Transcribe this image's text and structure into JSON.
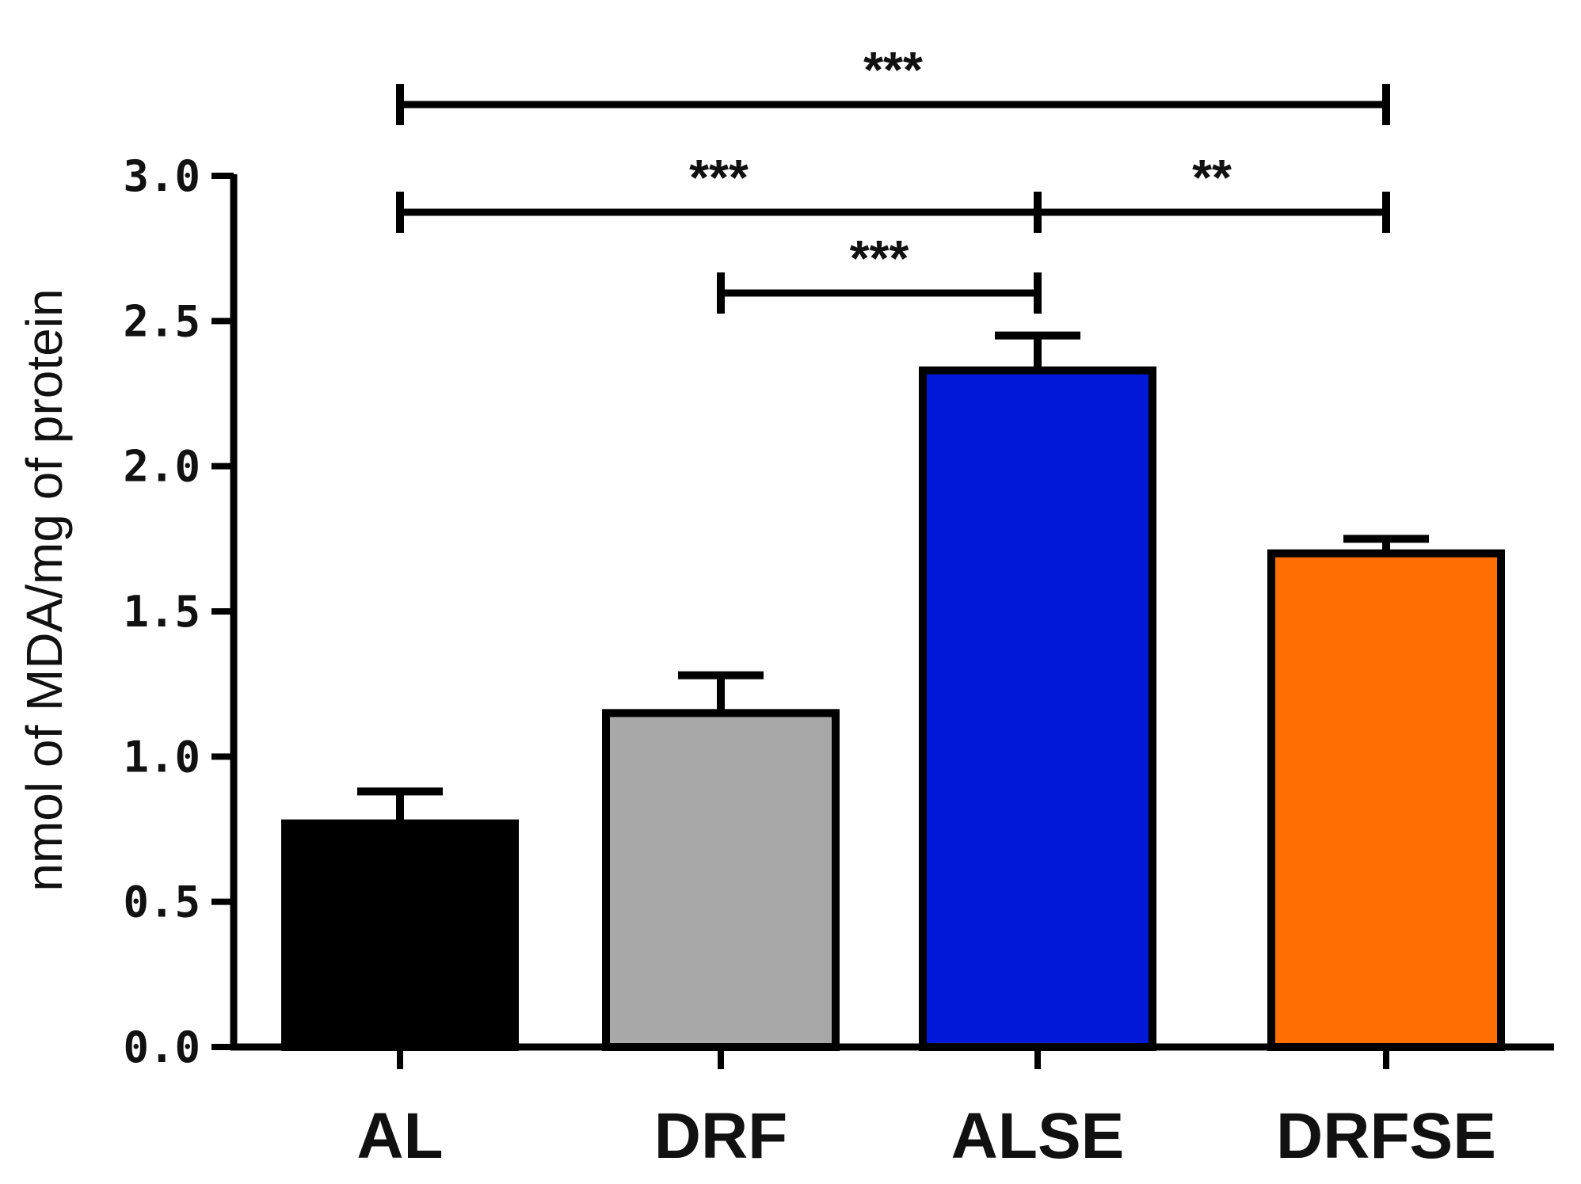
{
  "chart_data": {
    "type": "bar",
    "title": "",
    "xlabel": "",
    "ylabel": "nmol of MDA/mg of protein",
    "ylim": [
      0,
      3.0
    ],
    "yticks": [
      "0.0",
      "0.5",
      "1.0",
      "1.5",
      "2.0",
      "2.5",
      "3.0"
    ],
    "grid": false,
    "categories": [
      "AL",
      "DRF",
      "ALSE",
      "DRFSE"
    ],
    "values": [
      0.77,
      1.15,
      2.33,
      1.7
    ],
    "errors": [
      0.11,
      0.13,
      0.12,
      0.05
    ],
    "colors": [
      "#000000",
      "#a8a8a8",
      "#0018d8",
      "#ff6e00"
    ],
    "significance": [
      {
        "from": "AL",
        "to": "DRFSE",
        "label": "***"
      },
      {
        "from": "AL",
        "to": "ALSE",
        "label": "***"
      },
      {
        "from": "ALSE",
        "to": "DRFSE",
        "label": "**"
      },
      {
        "from": "DRF",
        "to": "ALSE",
        "label": "***"
      }
    ]
  }
}
